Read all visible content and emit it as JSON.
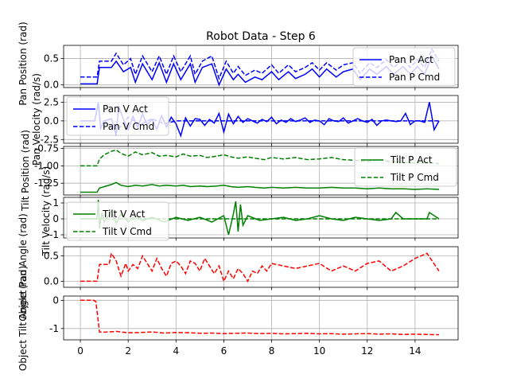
{
  "chart_data": {
    "title": "Robot Data - Step 6",
    "type": "line",
    "grid": true,
    "shared_x_ticks": [
      "0",
      "2",
      "4",
      "6",
      "8",
      "10",
      "12",
      "14"
    ],
    "panels": [
      {
        "ylabel": "Pan Position (rad)",
        "ylim": [
          -0.05,
          0.75
        ],
        "yticks": [
          "0.0",
          "0.5"
        ],
        "legend_position": "right",
        "series": [
          {
            "name": "Pan P Act",
            "color": "#0000ff",
            "style": "solid",
            "x": [
              0,
              0.7,
              0.8,
              1.3,
              1.5,
              1.8,
              2.1,
              2.3,
              2.6,
              3.0,
              3.3,
              3.6,
              3.9,
              4.2,
              4.6,
              4.8,
              5.1,
              5.5,
              5.8,
              6.1,
              6.4,
              6.6,
              6.9,
              7.3,
              7.6,
              8.0,
              8.3,
              8.7,
              9.0,
              9.4,
              9.7,
              10.0,
              10.3,
              10.7,
              11.0,
              11.4,
              11.7,
              12.1,
              12.4,
              12.8,
              13.1,
              13.5,
              13.8,
              14.1,
              14.4,
              14.7,
              15.0
            ],
            "y": [
              0.02,
              0.02,
              0.33,
              0.33,
              0.45,
              0.25,
              0.33,
              0.05,
              0.4,
              0.1,
              0.42,
              0.05,
              0.4,
              0.1,
              0.4,
              0.05,
              0.33,
              0.4,
              0.0,
              0.3,
              0.1,
              0.2,
              0.05,
              0.15,
              0.1,
              0.25,
              0.1,
              0.25,
              0.12,
              0.2,
              0.3,
              0.15,
              0.3,
              0.15,
              0.25,
              0.3,
              0.1,
              0.3,
              0.2,
              0.35,
              0.2,
              0.35,
              0.2,
              0.35,
              0.2,
              0.55,
              0.3
            ]
          },
          {
            "name": "Pan P Cmd",
            "color": "#0000ff",
            "style": "dashed",
            "x": [
              0,
              0.7,
              0.8,
              1.3,
              1.5,
              1.8,
              2.1,
              2.3,
              2.6,
              3.0,
              3.3,
              3.6,
              3.9,
              4.2,
              4.6,
              4.8,
              5.1,
              5.5,
              5.8,
              6.1,
              6.4,
              6.6,
              6.9,
              7.3,
              7.6,
              8.0,
              8.3,
              8.7,
              9.0,
              9.4,
              9.7,
              10.0,
              10.3,
              10.7,
              11.0,
              11.4,
              11.7,
              12.1,
              12.4,
              12.8,
              13.1,
              13.5,
              13.8,
              14.1,
              14.4,
              14.7,
              15.0
            ],
            "y": [
              0.15,
              0.15,
              0.45,
              0.45,
              0.6,
              0.38,
              0.5,
              0.2,
              0.55,
              0.25,
              0.55,
              0.2,
              0.55,
              0.25,
              0.55,
              0.2,
              0.45,
              0.55,
              0.12,
              0.45,
              0.22,
              0.35,
              0.18,
              0.28,
              0.22,
              0.38,
              0.22,
              0.38,
              0.25,
              0.33,
              0.42,
              0.28,
              0.42,
              0.28,
              0.38,
              0.42,
              0.22,
              0.42,
              0.33,
              0.48,
              0.33,
              0.48,
              0.33,
              0.48,
              0.33,
              0.68,
              0.45
            ]
          }
        ]
      },
      {
        "ylabel": "Pan Velocity (rad/s)",
        "ylim": [
          -3.0,
          3.4
        ],
        "yticks": [
          "2.5",
          "0.0",
          "-2.5"
        ],
        "legend_position": "upper left",
        "series": [
          {
            "name": "Pan V Act",
            "color": "#0000ff",
            "style": "solid",
            "x": [
              0,
              0.6,
              0.75,
              0.85,
              1.0,
              1.3,
              1.5,
              1.6,
              1.8,
              2.0,
              2.2,
              2.4,
              2.6,
              2.8,
              3.0,
              3.2,
              3.4,
              3.6,
              3.8,
              4.0,
              4.2,
              4.4,
              4.6,
              4.8,
              5.0,
              5.2,
              5.4,
              5.6,
              5.8,
              6.0,
              6.2,
              6.4,
              6.6,
              6.8,
              7.0,
              7.2,
              7.4,
              7.6,
              7.8,
              8.0,
              8.2,
              8.4,
              8.6,
              8.8,
              9.0,
              9.2,
              9.4,
              9.6,
              9.8,
              10.0,
              10.2,
              10.4,
              10.6,
              10.8,
              11.0,
              11.2,
              11.4,
              11.6,
              11.8,
              12.0,
              12.2,
              12.4,
              12.6,
              12.8,
              13.0,
              13.2,
              13.4,
              13.6,
              13.8,
              14.0,
              14.2,
              14.4,
              14.6,
              14.8,
              15.0
            ],
            "y": [
              0,
              0,
              2.5,
              -1.0,
              0,
              0.3,
              -2.0,
              2.0,
              0.2,
              -1.2,
              0.6,
              -0.9,
              0.9,
              -0.5,
              0.2,
              -1.1,
              0.7,
              -0.8,
              0.5,
              -0.4,
              -2.0,
              0.4,
              -0.7,
              0.3,
              0.2,
              -0.6,
              0.2,
              -0.3,
              1.0,
              -1.5,
              0.9,
              -0.4,
              0.6,
              -0.2,
              0.3,
              0.0,
              -0.3,
              0.2,
              -0.1,
              0.5,
              -0.4,
              0.1,
              -0.2,
              0.3,
              -0.1,
              0.1,
              0.4,
              -0.2,
              0.1,
              0.0,
              -0.5,
              0.3,
              0.0,
              -0.1,
              0.4,
              -0.3,
              0.0,
              0.3,
              0.0,
              -0.2,
              0.2,
              -0.6,
              0.0,
              0.1,
              0.0,
              -0.1,
              0.0,
              1.0,
              -0.5,
              0.0,
              0.0,
              -0.2,
              2.5,
              -1.2,
              0.0
            ]
          },
          {
            "name": "Pan V Cmd",
            "color": "#0000ff",
            "style": "dashed",
            "x": [
              0,
              0.6,
              0.75,
              0.85,
              1.0,
              1.5,
              2.0,
              2.5,
              3.0,
              3.5,
              4.0,
              15.0
            ],
            "y": [
              0,
              0,
              2.2,
              -0.8,
              0.1,
              -1.5,
              0.5,
              -0.5,
              0.3,
              -0.4,
              0.0,
              0.0
            ]
          }
        ]
      },
      {
        "ylabel": "Tilt Position (rad)",
        "ylim": [
          -1.42,
          -0.72
        ],
        "yticks": [
          "-0.75",
          "-1.00",
          "-1.25"
        ],
        "legend_position": "right",
        "series": [
          {
            "name": "Tilt P Act",
            "color": "#008000",
            "style": "solid",
            "x": [
              0,
              0.7,
              0.8,
              1.0,
              1.3,
              1.5,
              1.7,
              2.0,
              2.3,
              2.6,
              3.0,
              3.3,
              3.6,
              4.0,
              4.3,
              4.6,
              5.0,
              5.3,
              5.7,
              6.0,
              6.3,
              6.6,
              7.0,
              7.3,
              7.7,
              8.0,
              8.5,
              9.0,
              9.5,
              10.0,
              10.5,
              11.0,
              11.5,
              12.0,
              12.5,
              13.0,
              13.5,
              14.0,
              14.5,
              15.0
            ],
            "y": [
              -1.38,
              -1.38,
              -1.32,
              -1.3,
              -1.27,
              -1.24,
              -1.28,
              -1.3,
              -1.28,
              -1.29,
              -1.27,
              -1.29,
              -1.28,
              -1.29,
              -1.28,
              -1.3,
              -1.29,
              -1.3,
              -1.29,
              -1.28,
              -1.3,
              -1.31,
              -1.3,
              -1.31,
              -1.32,
              -1.31,
              -1.32,
              -1.31,
              -1.32,
              -1.32,
              -1.31,
              -1.32,
              -1.32,
              -1.33,
              -1.32,
              -1.33,
              -1.33,
              -1.34,
              -1.33,
              -1.34
            ]
          },
          {
            "name": "Tilt P Cmd",
            "color": "#008000",
            "style": "dashed",
            "x": [
              0,
              0.7,
              0.8,
              1.0,
              1.3,
              1.5,
              1.7,
              2.0,
              2.3,
              2.6,
              3.0,
              3.3,
              3.6,
              4.0,
              4.3,
              4.6,
              5.0,
              5.3,
              5.7,
              6.0,
              6.3,
              6.6,
              7.0,
              7.3,
              7.7,
              8.0,
              8.5,
              9.0,
              9.5,
              10.0,
              10.5,
              11.0,
              11.5,
              12.0,
              12.5,
              13.0,
              13.5,
              14.0,
              14.5,
              15.0
            ],
            "y": [
              -1.0,
              -1.0,
              -0.9,
              -0.84,
              -0.79,
              -0.77,
              -0.82,
              -0.86,
              -0.8,
              -0.84,
              -0.81,
              -0.86,
              -0.85,
              -0.87,
              -0.83,
              -0.86,
              -0.85,
              -0.88,
              -0.86,
              -0.84,
              -0.87,
              -0.89,
              -0.87,
              -0.89,
              -0.91,
              -0.88,
              -0.9,
              -0.88,
              -0.91,
              -0.9,
              -0.88,
              -0.91,
              -0.92,
              -0.94,
              -0.91,
              -0.94,
              -0.95,
              -0.96,
              -0.95,
              -0.97
            ]
          }
        ]
      },
      {
        "ylabel": "Tilt Velocity (rad/s)",
        "ylim": [
          -1.2,
          1.35
        ],
        "yticks": [
          "1",
          "0",
          "-1"
        ],
        "legend_position": "upper left",
        "series": [
          {
            "name": "Tilt V Act",
            "color": "#008000",
            "style": "solid",
            "x": [
              0,
              0.7,
              0.75,
              0.8,
              0.9,
              1.0,
              1.3,
              1.5,
              1.7,
              2.0,
              2.3,
              2.6,
              3.0,
              3.5,
              4.0,
              4.5,
              5.0,
              5.5,
              6.0,
              6.2,
              6.4,
              6.5,
              6.6,
              6.7,
              6.8,
              7.0,
              7.5,
              8.0,
              8.5,
              9.0,
              9.5,
              10.0,
              10.5,
              11.0,
              11.5,
              12.0,
              12.5,
              13.0,
              13.2,
              13.5,
              14.0,
              14.5,
              14.6,
              15.0
            ],
            "y": [
              0,
              0,
              1.2,
              -0.6,
              0.4,
              -0.2,
              0.5,
              -0.3,
              0.3,
              -0.2,
              0.2,
              -0.1,
              0.1,
              -0.2,
              0.1,
              -0.1,
              0.1,
              -0.2,
              0.2,
              -1.0,
              0.3,
              1.1,
              -0.8,
              0.9,
              -0.4,
              0.2,
              -0.1,
              0.0,
              0.1,
              -0.1,
              0.0,
              0.2,
              0.0,
              -0.1,
              0.1,
              0.0,
              -0.1,
              0.0,
              0.4,
              0.0,
              0.0,
              0.0,
              0.4,
              0.0
            ]
          },
          {
            "name": "Tilt V Cmd",
            "color": "#008000",
            "style": "dashed",
            "x": [
              0,
              15.0
            ],
            "y": [
              0,
              0
            ]
          }
        ]
      },
      {
        "ylabel": "Object Pan Angle (rad)",
        "ylim": [
          -0.12,
          0.68
        ],
        "yticks": [
          "0.5",
          "0.0"
        ],
        "legend_position": "",
        "series": [
          {
            "name": "",
            "color": "#ff0000",
            "style": "dashed",
            "x": [
              0,
              0.5,
              0.5,
              0.7,
              0.8,
              1.2,
              1.3,
              1.5,
              1.7,
              1.9,
              2.0,
              2.2,
              2.4,
              2.6,
              2.8,
              3.0,
              3.2,
              3.4,
              3.6,
              3.8,
              4.0,
              4.2,
              4.4,
              4.6,
              4.8,
              5.0,
              5.2,
              5.4,
              5.6,
              5.8,
              6.0,
              6.2,
              6.4,
              6.6,
              6.8,
              7.0,
              7.2,
              7.4,
              7.6,
              7.8,
              8.0,
              8.5,
              9.0,
              9.5,
              10.0,
              10.5,
              11.0,
              11.5,
              12.0,
              12.5,
              13.0,
              13.5,
              14.0,
              14.5,
              15.0
            ],
            "y": [
              0,
              0,
              0.0,
              0.0,
              0.33,
              0.33,
              0.55,
              0.4,
              0.1,
              0.35,
              0.2,
              0.33,
              0.25,
              0.5,
              0.35,
              0.2,
              0.45,
              0.25,
              0.1,
              0.35,
              0.4,
              0.3,
              0.15,
              0.4,
              0.35,
              0.2,
              0.45,
              0.3,
              0.15,
              0.3,
              0.0,
              0.2,
              0.05,
              0.25,
              0.15,
              0.0,
              0.2,
              0.15,
              0.3,
              0.2,
              0.35,
              0.3,
              0.25,
              0.3,
              0.35,
              0.2,
              0.3,
              0.2,
              0.35,
              0.4,
              0.2,
              0.3,
              0.45,
              0.55,
              0.2
            ]
          }
        ]
      },
      {
        "ylabel": "Object Tilt Angle (rad)",
        "ylim": [
          -1.4,
          0.15
        ],
        "yticks": [
          "0",
          "-1"
        ],
        "legend_position": "",
        "series": [
          {
            "name": "",
            "color": "#ff0000",
            "style": "dashed",
            "x": [
              0,
              0.55,
              0.65,
              0.8,
              1.0,
              1.5,
              2.0,
              2.5,
              3.0,
              3.5,
              4.0,
              4.5,
              5.0,
              5.5,
              6.0,
              6.5,
              7.0,
              7.5,
              8.0,
              8.5,
              9.0,
              9.5,
              10.0,
              10.5,
              11.0,
              11.5,
              12.0,
              12.5,
              13.0,
              13.5,
              14.0,
              14.5,
              15.0
            ],
            "y": [
              0,
              0,
              -0.05,
              -1.12,
              -1.13,
              -1.1,
              -1.15,
              -1.14,
              -1.12,
              -1.16,
              -1.14,
              -1.15,
              -1.17,
              -1.16,
              -1.18,
              -1.17,
              -1.16,
              -1.18,
              -1.17,
              -1.19,
              -1.18,
              -1.17,
              -1.19,
              -1.18,
              -1.2,
              -1.19,
              -1.18,
              -1.2,
              -1.19,
              -1.21,
              -1.2,
              -1.21,
              -1.22
            ]
          }
        ]
      }
    ]
  }
}
